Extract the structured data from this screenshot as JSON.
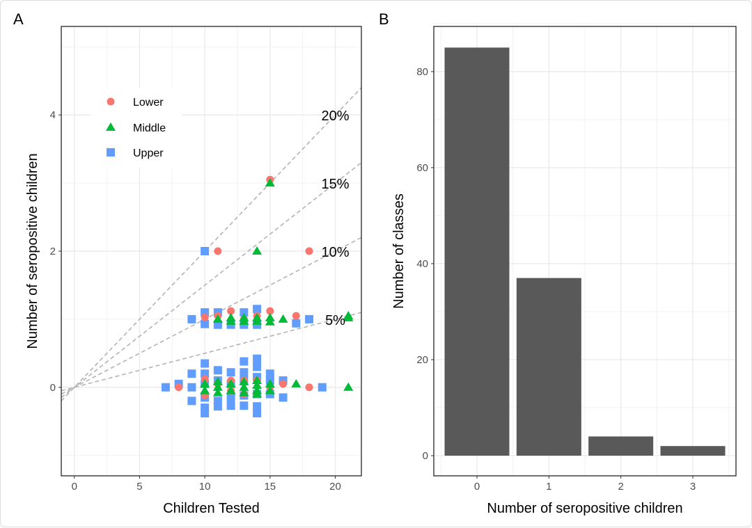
{
  "chart_data": [
    {
      "panel": "A",
      "type": "scatter",
      "xlabel": "Children Tested",
      "ylabel": "Number of seropositive children",
      "xlim": [
        -1,
        22
      ],
      "ylim": [
        -1.3,
        5.3
      ],
      "xticks": [
        0,
        5,
        10,
        15,
        20
      ],
      "yticks": [
        0,
        2,
        4
      ],
      "grid": true,
      "legend": {
        "placement": "top-left",
        "entries": [
          "Lower",
          "Middle",
          "Upper"
        ]
      },
      "colors": {
        "Lower": "#F8766D",
        "Middle": "#00BA38",
        "Upper": "#619CFF"
      },
      "reference_lines": [
        {
          "label": "20%",
          "slope": 0.2
        },
        {
          "label": "15%",
          "slope": 0.15
        },
        {
          "label": "10%",
          "slope": 0.1
        },
        {
          "label": "5%",
          "slope": 0.05
        }
      ],
      "series": [
        {
          "name": "Upper",
          "marker": "square",
          "points": [
            [
              7,
              0
            ],
            [
              8,
              0.05
            ],
            [
              9,
              0.2
            ],
            [
              9,
              0
            ],
            [
              9,
              -0.2
            ],
            [
              10,
              0.35
            ],
            [
              10,
              0.2
            ],
            [
              10,
              0.05
            ],
            [
              10,
              -0.15
            ],
            [
              10,
              -0.3
            ],
            [
              10,
              -0.38
            ],
            [
              11,
              0.25
            ],
            [
              11,
              0.1
            ],
            [
              11,
              -0.2
            ],
            [
              11,
              -0.28
            ],
            [
              12,
              0.22
            ],
            [
              12,
              0.05
            ],
            [
              12,
              -0.15
            ],
            [
              12,
              -0.27
            ],
            [
              13,
              0.38
            ],
            [
              13,
              0.22
            ],
            [
              13,
              0.1
            ],
            [
              13,
              -0.12
            ],
            [
              13,
              -0.27
            ],
            [
              14,
              0.42
            ],
            [
              14,
              0.3
            ],
            [
              14,
              0.15
            ],
            [
              14,
              -0.1
            ],
            [
              14,
              -0.28
            ],
            [
              14,
              -0.38
            ],
            [
              15,
              0.2
            ],
            [
              15,
              0.1
            ],
            [
              15,
              -0.1
            ],
            [
              16,
              0.1
            ],
            [
              16,
              -0.15
            ],
            [
              19,
              0
            ],
            [
              9,
              1
            ],
            [
              10,
              1.1
            ],
            [
              10,
              0.93
            ],
            [
              11,
              1.1
            ],
            [
              11,
              0.92
            ],
            [
              12,
              0.92
            ],
            [
              13,
              1.1
            ],
            [
              13,
              0.92
            ],
            [
              14,
              1.15
            ],
            [
              14,
              0.92
            ],
            [
              17,
              0.94
            ],
            [
              18,
              1
            ],
            [
              10,
              2
            ]
          ]
        },
        {
          "name": "Lower",
          "marker": "circle",
          "points": [
            [
              8,
              0
            ],
            [
              10,
              0.12
            ],
            [
              10,
              -0.12
            ],
            [
              11,
              0.05
            ],
            [
              12,
              0.1
            ],
            [
              12,
              -0.05
            ],
            [
              13,
              0.1
            ],
            [
              13,
              -0.1
            ],
            [
              14,
              0.1
            ],
            [
              14,
              -0.1
            ],
            [
              15,
              0
            ],
            [
              16,
              0.05
            ],
            [
              18,
              0
            ],
            [
              10,
              1.03
            ],
            [
              11,
              1.05
            ],
            [
              12,
              1.12
            ],
            [
              13,
              1.0
            ],
            [
              14,
              1.05
            ],
            [
              15,
              1.12
            ],
            [
              17,
              1.05
            ],
            [
              11,
              2
            ],
            [
              18,
              2
            ],
            [
              15,
              3.05
            ]
          ]
        },
        {
          "name": "Middle",
          "marker": "triangle",
          "points": [
            [
              10,
              0.05
            ],
            [
              10,
              -0.05
            ],
            [
              11,
              0.08
            ],
            [
              11,
              0
            ],
            [
              11,
              -0.08
            ],
            [
              12,
              0.05
            ],
            [
              12,
              -0.05
            ],
            [
              13,
              0.08
            ],
            [
              13,
              0
            ],
            [
              13,
              -0.08
            ],
            [
              14,
              0.1
            ],
            [
              14,
              0.03
            ],
            [
              14,
              -0.05
            ],
            [
              14,
              -0.1
            ],
            [
              15,
              0.05
            ],
            [
              15,
              -0.05
            ],
            [
              17,
              0.05
            ],
            [
              21,
              0
            ],
            [
              11,
              1.0
            ],
            [
              12,
              1.02
            ],
            [
              12,
              0.97
            ],
            [
              13,
              1.02
            ],
            [
              13,
              0.97
            ],
            [
              14,
              1.02
            ],
            [
              14,
              0.97
            ],
            [
              15,
              1.02
            ],
            [
              15,
              0.96
            ],
            [
              16,
              1.0
            ],
            [
              21,
              1.05
            ],
            [
              21,
              1.02
            ],
            [
              14,
              2
            ],
            [
              15,
              3.0
            ]
          ]
        }
      ]
    },
    {
      "panel": "B",
      "type": "bar",
      "categories": [
        "0",
        "1",
        "2",
        "3"
      ],
      "values": [
        85,
        37,
        4,
        2
      ],
      "xlabel": "Number of seropositive children",
      "ylabel": "Number of classes",
      "ylim": [
        -4.2,
        89.4
      ],
      "yticks": [
        0,
        20,
        40,
        60,
        80
      ],
      "grid": true,
      "bar_color": "#595959"
    }
  ],
  "panel_labels": [
    "A",
    "B"
  ]
}
